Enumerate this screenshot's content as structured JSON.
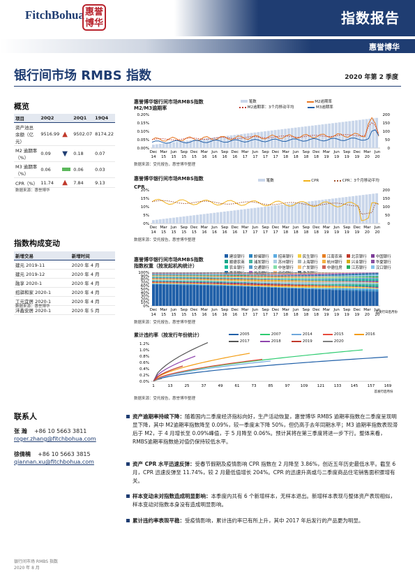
{
  "header": {
    "brand": "FitchBohua",
    "seal_lines": [
      "惠誉",
      "博华"
    ],
    "report_type": "指数报告",
    "subbrand": "惠誉博华"
  },
  "title": "银行间市场 RMBS 指数",
  "period": "2020 年第 2 季度",
  "overview": {
    "heading": "概览",
    "cols": [
      "项目",
      "20Q2",
      "20Q1",
      "19Q4"
    ],
    "rows": [
      {
        "label": "资产池总余额（亿元）",
        "q2": "9516.99",
        "dir": "up",
        "q1": "9502.07",
        "q4": "8174.22"
      },
      {
        "label": "M2 逾期率（%）",
        "q2": "0.09",
        "dir": "down",
        "q1": "0.18",
        "q4": "0.07"
      },
      {
        "label": "M3 逾期率（%）",
        "q2": "0.06",
        "dir": "flat",
        "q1": "0.06",
        "q4": "0.03"
      },
      {
        "label": "CPR（%）",
        "q2": "11.74",
        "dir": "up",
        "q1": "7.84",
        "q4": "9.13"
      }
    ],
    "source": "数据来源：惠誉博华"
  },
  "changes": {
    "heading": "指数构成变动",
    "cols": [
      "新增交易",
      "新增时间"
    ],
    "rows": [
      {
        "name": "建元 2019-11",
        "time": "2020 年 4 月"
      },
      {
        "name": "建元 2019-12",
        "time": "2020 年 4 月"
      },
      {
        "name": "融享 2020-1",
        "time": "2020 年 4 月"
      },
      {
        "name": "招驿和家 2020-1",
        "time": "2020 年 4 月"
      },
      {
        "name": "工元宜居 2020-1",
        "time": "2020 年 4 月"
      },
      {
        "name": "沣鑫安居 2020-1",
        "time": "2020 年 5 月"
      }
    ],
    "source": "数据来源：惠誉博华"
  },
  "contact": {
    "heading": "联系人",
    "people": [
      {
        "name": "张  瀚",
        "phone": "+86 10 5663 3811",
        "email": "roger.zhang@fitchbohua.com"
      },
      {
        "name": "徐倩楠",
        "phone": "+86 10 5663 3815",
        "email": "qiannan.xu@fitchbohua.com"
      }
    ]
  },
  "x_ticks": [
    "Dec 14",
    "Mar 15",
    "Jun 15",
    "Sep 15",
    "Dec 15",
    "Mar 16",
    "Jun 16",
    "Sep 16",
    "Dec 16",
    "Mar 17",
    "Jun 17",
    "Sep 17",
    "Dec 17",
    "Mar 18",
    "Jun 18",
    "Sep 18",
    "Dec 18",
    "Mar 19",
    "Jun 19",
    "Sep 19",
    "Dec 19",
    "Mar 20",
    "Jun 20"
  ],
  "charts": {
    "c1": {
      "title": "惠誉博华银行间市场RMBS指数",
      "subtitle": "M2/M3逾期率",
      "legend": [
        "笔数",
        "M2逾期率",
        "M2逾期率：3个月移动平均",
        "M3逾期率"
      ],
      "source": "数据来源：受托报告，惠誉博华整理",
      "yl": [
        "0.20%",
        "0.15%",
        "0.10%",
        "0.05%",
        "0.00%"
      ],
      "yr": [
        "200",
        "150",
        "100",
        "50",
        "0"
      ],
      "colors": {
        "count": "#c9d6ea",
        "m2": "#e87722",
        "m2ma": "#c0392b",
        "m3": "#1f5fa8"
      }
    },
    "c2": {
      "title": "惠誉博华银行间市场RMBS指数",
      "subtitle": "CPR",
      "legend": [
        "笔数",
        "CPR",
        "CPR：3个月移动平均"
      ],
      "source": "数据来源：受托报告，惠誉博华整理",
      "yl": [
        "20%",
        "15%",
        "10%",
        "5%",
        "0%"
      ],
      "yr": [
        "200",
        "150",
        "100",
        "50",
        "0"
      ],
      "colors": {
        "count": "#c9d6ea",
        "cpr": "#f2b21b",
        "cprma": "#a0522d"
      }
    },
    "c3": {
      "title": "惠誉博华银行间市场RMBS指数",
      "subtitle": "指数权重（按发起机构统计）",
      "legend": [
        "建设银行",
        "邮储银行",
        "招商银行",
        "民生银行",
        "江南农商",
        "北京银行",
        "中国银行",
        "顺德农商",
        "浦发银行",
        "苏州银行",
        "上海银行",
        "杭州银行",
        "兴业银行",
        "华夏银行",
        "农业银行",
        "交通银行",
        "中信银行",
        "广发银行",
        "中德住房",
        "江苏银行",
        "汉口银行",
        "南京银行",
        "浙商银行",
        "平安银行",
        "渤海银行"
      ],
      "source": "数据来源：受托报告，惠誉博华整理",
      "yl": [
        "100%",
        "90%",
        "80%",
        "70%",
        "60%",
        "50%",
        "40%",
        "30%",
        "20%",
        "10%",
        "0%"
      ],
      "note": "首发行日后月份"
    },
    "c4": {
      "title": "累计违约率（按发行年份统计）",
      "legend": [
        "2005",
        "2007",
        "2014",
        "2015",
        "2016",
        "2017",
        "2018",
        "2019",
        "2020"
      ],
      "source": "数据来源：受托报告，惠誉博华整理",
      "yl": [
        "1.2%",
        "1.0%",
        "0.8%",
        "0.6%",
        "0.4%",
        "0.2%",
        "0.0%"
      ],
      "xt": [
        "1",
        "13",
        "25",
        "37",
        "49",
        "61",
        "73",
        "85",
        "97",
        "109",
        "121",
        "133",
        "145",
        "157",
        "169"
      ],
      "xnote": "首发行后月份",
      "colors": [
        "#1f5fa8",
        "#2ecc71",
        "#6fa8dc",
        "#e74c3c",
        "#f39c12",
        "#555555",
        "#8e44ad",
        "#c0392b",
        "#7f7f7f"
      ]
    }
  },
  "bullets": [
    {
      "lead": "资产逾期率持续下降：",
      "text": "随着国内二季度经济指标向好，生产活动恢复，惠誉博华 RMBS 逾期率指数在二季度呈现明显下降，其中 M2逾期率指数降至 0.09%，较一季度末下降 50%，但仍高于去年同期水平；M3 逾期率指数表现滞后于 M2，于 4 月增长至 0.09%峰值，于 5 月降至 0.06%。预计其将在第三季度将进一步下行。整体来看，RMBS逾期率指数绝对值仍保持较低水平。"
    },
    {
      "lead": "资产 CPR 水平迅速反弹：",
      "text": "受春节假期及疫情影响 CPR 指数在 2 月降至 3.86%，创近五年历史最低水平。截至 6 月，CPR 迅速反弹至 11.74%，较 2 月最低值增长 204%。CPR 的迅速升高或与二季度商品住宅销售面积骤增有关。"
    },
    {
      "lead": "样本变动未对指数造成明显影响：",
      "text": "本季度内共有 6 个新增样本，无样本退出。新增样本表现与整体资产表现相似，样本变动对指数本身没有造成明显影响。"
    },
    {
      "lead": "累计违约率表现平稳：",
      "text": "受疫情影响，累计违约率已有所上升，其中 2017 年后发行的产品更为明显。"
    }
  ],
  "footer": [
    "银行间市场 RMBS 指数",
    "2020 年 8 月"
  ]
}
